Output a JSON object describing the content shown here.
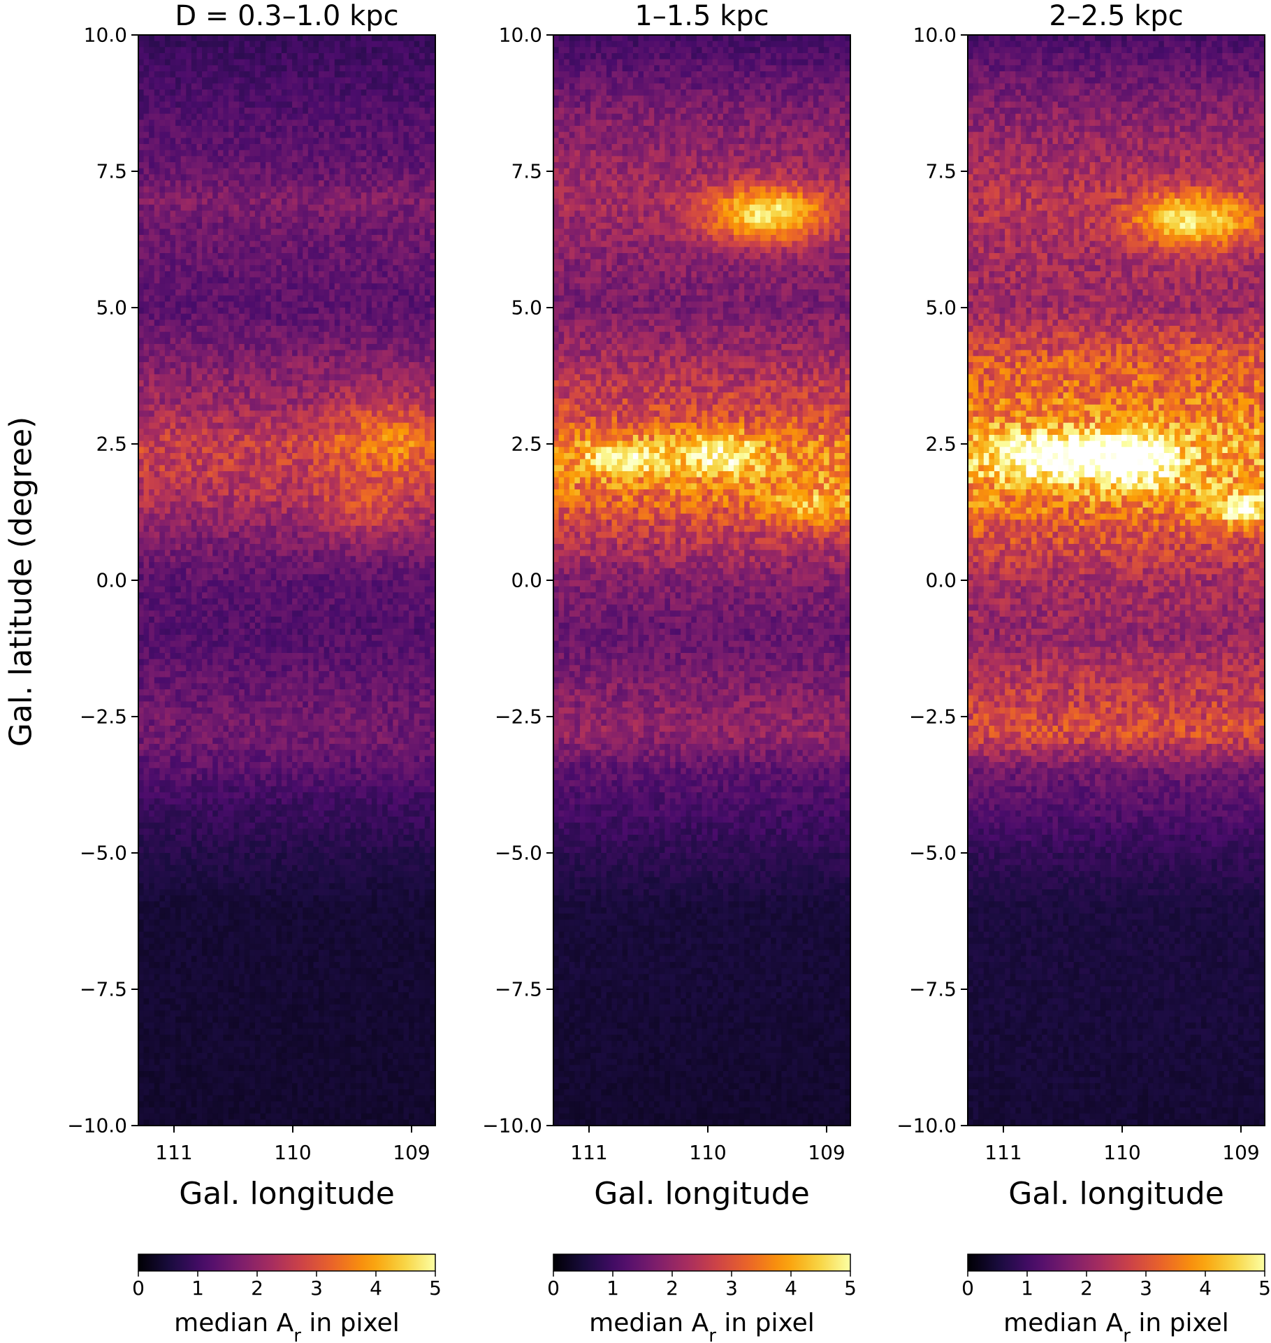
{
  "figure": {
    "ylabel": "Gal. latitude  (degree)"
  },
  "chart_data": [
    {
      "type": "heatmap",
      "title": "D = 0.3–1.0 kpc",
      "xlabel": "Gal. longitude",
      "xlim": [
        111.3,
        108.8
      ],
      "xticks": [
        "111",
        "110",
        "109"
      ],
      "ylim": [
        -10,
        10
      ],
      "yticks": [
        "10.0",
        "7.5",
        "5.0",
        "2.5",
        "0.0",
        "−2.5",
        "−5.0",
        "−7.5",
        "−10.0"
      ],
      "colormap": "inferno",
      "colorbar": {
        "min": 0,
        "max": 5,
        "ticks": [
          "0",
          "1",
          "2",
          "3",
          "4",
          "5"
        ],
        "label": "median A",
        "label_sub": "r",
        "label_suffix": " in pixel"
      },
      "bands": [
        [
          10,
          0.8
        ],
        [
          7.5,
          1.3
        ],
        [
          7.0,
          1.6
        ],
        [
          6.5,
          1.4
        ],
        [
          5.0,
          1.2
        ],
        [
          4.0,
          1.6
        ],
        [
          3.0,
          2.0
        ],
        [
          2.5,
          2.4
        ],
        [
          2.0,
          2.3
        ],
        [
          1.5,
          2.1
        ],
        [
          1.0,
          1.7
        ],
        [
          0.0,
          1.2
        ],
        [
          -1.0,
          1.1
        ],
        [
          -2.5,
          1.4
        ],
        [
          -3.0,
          1.4
        ],
        [
          -4.0,
          0.9
        ],
        [
          -5.0,
          0.6
        ],
        [
          -6.0,
          0.4
        ],
        [
          -10,
          0.35
        ]
      ],
      "clouds": [
        {
          "l": 109.2,
          "b": 2.6,
          "r": 0.5,
          "rb": 0.8,
          "amp": 0.9
        },
        {
          "l": 109.4,
          "b": 1.2,
          "r": 0.4,
          "rb": 0.5,
          "amp": 0.6
        }
      ]
    },
    {
      "type": "heatmap",
      "title": "1–1.5 kpc",
      "xlabel": "Gal. longitude",
      "xlim": [
        111.3,
        108.8
      ],
      "xticks": [
        "111",
        "110",
        "109"
      ],
      "ylim": [
        -10,
        10
      ],
      "yticks": [
        "10.0",
        "7.5",
        "5.0",
        "2.5",
        "0.0",
        "−2.5",
        "−5.0",
        "−7.5",
        "−10.0"
      ],
      "colormap": "inferno",
      "colorbar": {
        "min": 0,
        "max": 5,
        "ticks": [
          "0",
          "1",
          "2",
          "3",
          "4",
          "5"
        ],
        "label": "median A",
        "label_sub": "r",
        "label_suffix": " in pixel"
      },
      "bands": [
        [
          10,
          0.9
        ],
        [
          8.5,
          1.6
        ],
        [
          7.0,
          2.0
        ],
        [
          6.0,
          1.7
        ],
        [
          5.0,
          1.5
        ],
        [
          4.0,
          2.0
        ],
        [
          3.0,
          2.6
        ],
        [
          2.5,
          3.2
        ],
        [
          2.0,
          3.3
        ],
        [
          1.5,
          3.0
        ],
        [
          1.0,
          2.4
        ],
        [
          0.0,
          1.6
        ],
        [
          -1.0,
          1.3
        ],
        [
          -2.0,
          1.6
        ],
        [
          -2.8,
          1.8
        ],
        [
          -3.5,
          1.2
        ],
        [
          -5.0,
          0.7
        ],
        [
          -6.0,
          0.45
        ],
        [
          -10,
          0.35
        ]
      ],
      "clouds": [
        {
          "l": 109.5,
          "b": 6.7,
          "r": 0.5,
          "rb": 0.5,
          "amp": 2.4
        },
        {
          "l": 110.7,
          "b": 2.25,
          "r": 0.35,
          "rb": 0.3,
          "amp": 1.4
        },
        {
          "l": 109.9,
          "b": 2.3,
          "r": 0.35,
          "rb": 0.4,
          "amp": 1.4
        },
        {
          "l": 109.1,
          "b": 1.3,
          "r": 0.4,
          "rb": 0.4,
          "amp": 1.0
        }
      ]
    },
    {
      "type": "heatmap",
      "title": "2–2.5 kpc",
      "xlabel": "Gal. longitude",
      "xlim": [
        111.3,
        108.8
      ],
      "xticks": [
        "111",
        "110",
        "109"
      ],
      "ylim": [
        -10,
        10
      ],
      "yticks": [
        "10.0",
        "7.5",
        "5.0",
        "2.5",
        "0.0",
        "−2.5",
        "−5.0",
        "−7.5",
        "−10.0"
      ],
      "colormap": "inferno",
      "colorbar": {
        "min": 0,
        "max": 5,
        "ticks": [
          "0",
          "1",
          "2",
          "3",
          "4",
          "5"
        ],
        "label": "median A",
        "label_sub": "r",
        "label_suffix": " in pixel"
      },
      "bands": [
        [
          10,
          1.0
        ],
        [
          8.5,
          1.7
        ],
        [
          7.0,
          2.2
        ],
        [
          6.0,
          2.0
        ],
        [
          5.0,
          1.9
        ],
        [
          4.0,
          2.8
        ],
        [
          3.0,
          3.2
        ],
        [
          2.5,
          3.6
        ],
        [
          2.0,
          3.6
        ],
        [
          1.5,
          3.3
        ],
        [
          1.0,
          2.8
        ],
        [
          0.0,
          2.0
        ],
        [
          -1.0,
          1.8
        ],
        [
          -2.0,
          2.3
        ],
        [
          -2.8,
          2.6
        ],
        [
          -3.5,
          1.4
        ],
        [
          -5.0,
          0.75
        ],
        [
          -6.0,
          0.5
        ],
        [
          -10,
          0.4
        ]
      ],
      "clouds": [
        {
          "l": 109.4,
          "b": 6.6,
          "r": 0.5,
          "rb": 0.5,
          "amp": 2.2
        },
        {
          "l": 110.6,
          "b": 2.3,
          "r": 0.5,
          "rb": 0.4,
          "amp": 1.8
        },
        {
          "l": 109.9,
          "b": 2.2,
          "r": 0.4,
          "rb": 0.5,
          "amp": 1.8
        },
        {
          "l": 109.0,
          "b": 1.3,
          "r": 0.3,
          "rb": 0.3,
          "amp": 1.5
        }
      ]
    }
  ]
}
